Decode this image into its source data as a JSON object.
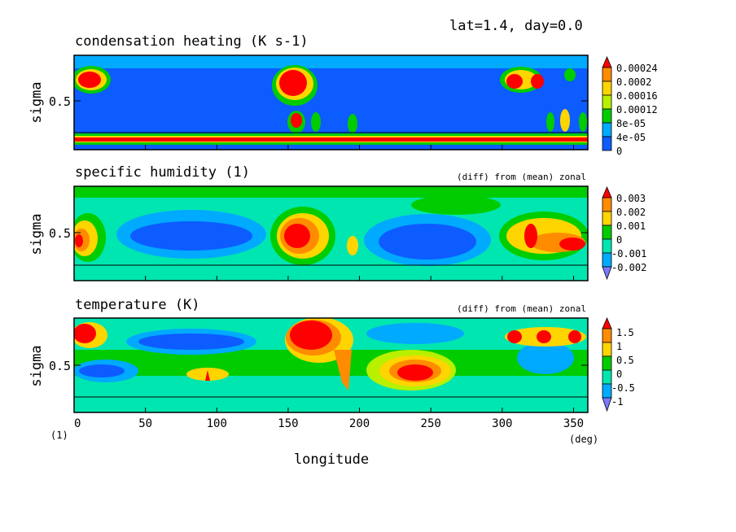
{
  "header": "lat=1.4, day=0.0",
  "xlabel": "longitude",
  "x_unit": "(deg)",
  "y_unit": "(1)",
  "x_ticks": [
    "0",
    "50",
    "100",
    "150",
    "200",
    "250",
    "300",
    "350"
  ],
  "colors": {
    "c0": "#0d5cff",
    "c1": "#00aaff",
    "c2": "#00e6b0",
    "c3": "#00cc00",
    "c4": "#b8f000",
    "c5": "#ffd500",
    "c6": "#ff8c00",
    "c7": "#ff0000",
    "c8": "#7a7aff"
  },
  "chart_data": [
    {
      "type": "heatmap",
      "title": "condensation heating (K s-1)",
      "subtitle": "",
      "ylabel": "sigma",
      "y_tick": "0.5",
      "xlim": [
        0,
        360
      ],
      "ylim": [
        0.1,
        1.0
      ],
      "legend_labels": [
        "0.00024",
        "0.0002",
        "0.00016",
        "0.00012",
        "8e-05",
        "4e-05",
        "0"
      ],
      "features": [
        {
          "lon": [
            0,
            20
          ],
          "sigma": [
            0.78,
            0.95
          ],
          "value": "high"
        },
        {
          "lon": [
            140,
            175
          ],
          "sigma": [
            0.6,
            0.95
          ],
          "value": "high"
        },
        {
          "lon": [
            300,
            340
          ],
          "sigma": [
            0.75,
            0.95
          ],
          "value": "high"
        },
        {
          "lon": [
            0,
            360
          ],
          "sigma": [
            0.15,
            0.18
          ],
          "value": "high"
        }
      ]
    },
    {
      "type": "heatmap",
      "title": "specific humidity (1)",
      "subtitle": "(diff) from (mean) zonal",
      "ylabel": "sigma",
      "y_tick": "0.5",
      "xlim": [
        0,
        360
      ],
      "ylim": [
        0.1,
        1.0
      ],
      "legend_labels": [
        "0.003",
        "0.002",
        "0.001",
        "0",
        "-0.001",
        "-0.002"
      ],
      "features": [
        {
          "lon": [
            0,
            15
          ],
          "sigma": [
            0.4,
            0.6
          ],
          "value": "positive"
        },
        {
          "lon": [
            140,
            175
          ],
          "sigma": [
            0.35,
            0.7
          ],
          "value": "positive"
        },
        {
          "lon": [
            300,
            355
          ],
          "sigma": [
            0.3,
            0.7
          ],
          "value": "positive"
        },
        {
          "lon": [
            40,
            125
          ],
          "sigma": [
            0.3,
            0.6
          ],
          "value": "negative"
        },
        {
          "lon": [
            210,
            280
          ],
          "sigma": [
            0.2,
            0.55
          ],
          "value": "negative"
        }
      ]
    },
    {
      "type": "heatmap",
      "title": "temperature (K)",
      "subtitle": "(diff) from (mean) zonal",
      "ylabel": "sigma",
      "y_tick": "0.5",
      "xlim": [
        0,
        360
      ],
      "ylim": [
        0.1,
        1.0
      ],
      "legend_labels": [
        "1.5",
        "1",
        "0.5",
        "0",
        "-0.5",
        "-1"
      ],
      "features": [
        {
          "lon": [
            0,
            35
          ],
          "sigma": [
            0.75,
            0.95
          ],
          "value": "positive"
        },
        {
          "lon": [
            140,
            195
          ],
          "sigma": [
            0.55,
            1.0
          ],
          "value": "positive"
        },
        {
          "lon": [
            215,
            265
          ],
          "sigma": [
            0.35,
            0.55
          ],
          "value": "positive"
        },
        {
          "lon": [
            40,
            120
          ],
          "sigma": [
            0.75,
            0.9
          ],
          "value": "negative"
        },
        {
          "lon": [
            0,
            45
          ],
          "sigma": [
            0.35,
            0.5
          ],
          "value": "negative"
        }
      ]
    }
  ]
}
